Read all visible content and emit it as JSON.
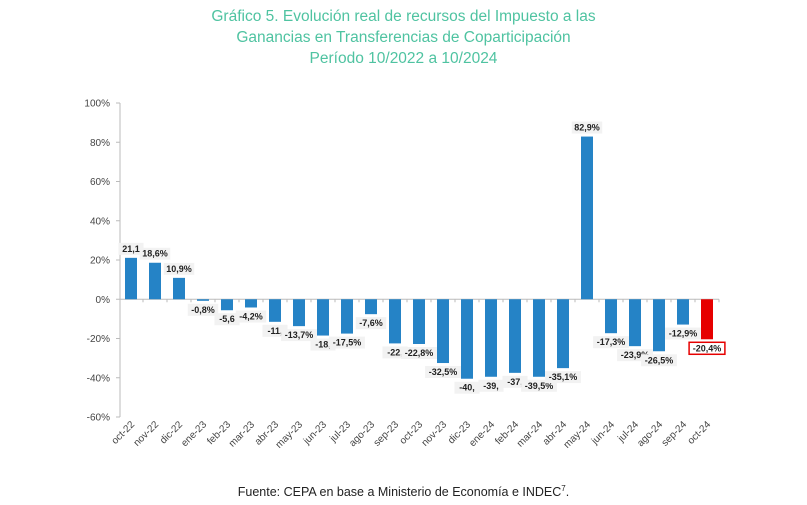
{
  "chart_data": {
    "type": "bar",
    "title": [
      "Gráfico 5. Evolución real de recursos del Impuesto a las",
      "Ganancias en Transferencias de Coparticipación",
      "Período 10/2022 a 10/2024"
    ],
    "source": "Fuente: CEPA en base a Ministerio de Economía e INDEC",
    "source_footnote": "7",
    "categories": [
      "oct-22",
      "nov-22",
      "dic-22",
      "ene-23",
      "feb-23",
      "mar-23",
      "abr-23",
      "may-23",
      "jun-23",
      "jul-23",
      "ago-23",
      "sep-23",
      "oct-23",
      "nov-23",
      "dic-23",
      "ene-24",
      "feb-24",
      "mar-24",
      "abr-24",
      "may-24",
      "jun-24",
      "jul-24",
      "ago-24",
      "sep-24",
      "oct-24"
    ],
    "values": [
      21.1,
      18.6,
      10.9,
      -0.8,
      -5.6,
      -4.2,
      -11.5,
      -13.7,
      -18.5,
      -17.5,
      -7.6,
      -22.5,
      -22.8,
      -32.5,
      -40.5,
      -39.5,
      -37.5,
      -39.5,
      -35.1,
      82.9,
      -17.3,
      -23.9,
      -26.5,
      -12.9,
      -20.4
    ],
    "data_labels": [
      "21,1",
      "18,6%",
      "10,9%",
      "-0,8%",
      "-5,6",
      "-4,2%",
      "-11,",
      "-13,7%",
      "-18,",
      "-17,5%",
      "-7,6%",
      "-22,",
      "-22,8%",
      "-32,5%",
      "-40,",
      "-39,",
      "-37,",
      "-39,5%",
      "-35,1%",
      "82,9%",
      "-17,3%",
      "-23,9%",
      "-26,5%",
      "-12,9%",
      "-20,4%"
    ],
    "ylim": [
      -60,
      100
    ],
    "yticks": [
      100,
      80,
      60,
      40,
      20,
      0,
      -20,
      -40,
      -60
    ],
    "ytick_labels": [
      "100%",
      "80%",
      "60%",
      "40%",
      "20%",
      "0%",
      "-20%",
      "-40%",
      "-60%"
    ],
    "grid": false,
    "colors": {
      "default": "#2583c6",
      "highlight": "#e60000",
      "title": "#4fc3a1"
    },
    "highlight_index": 24
  }
}
